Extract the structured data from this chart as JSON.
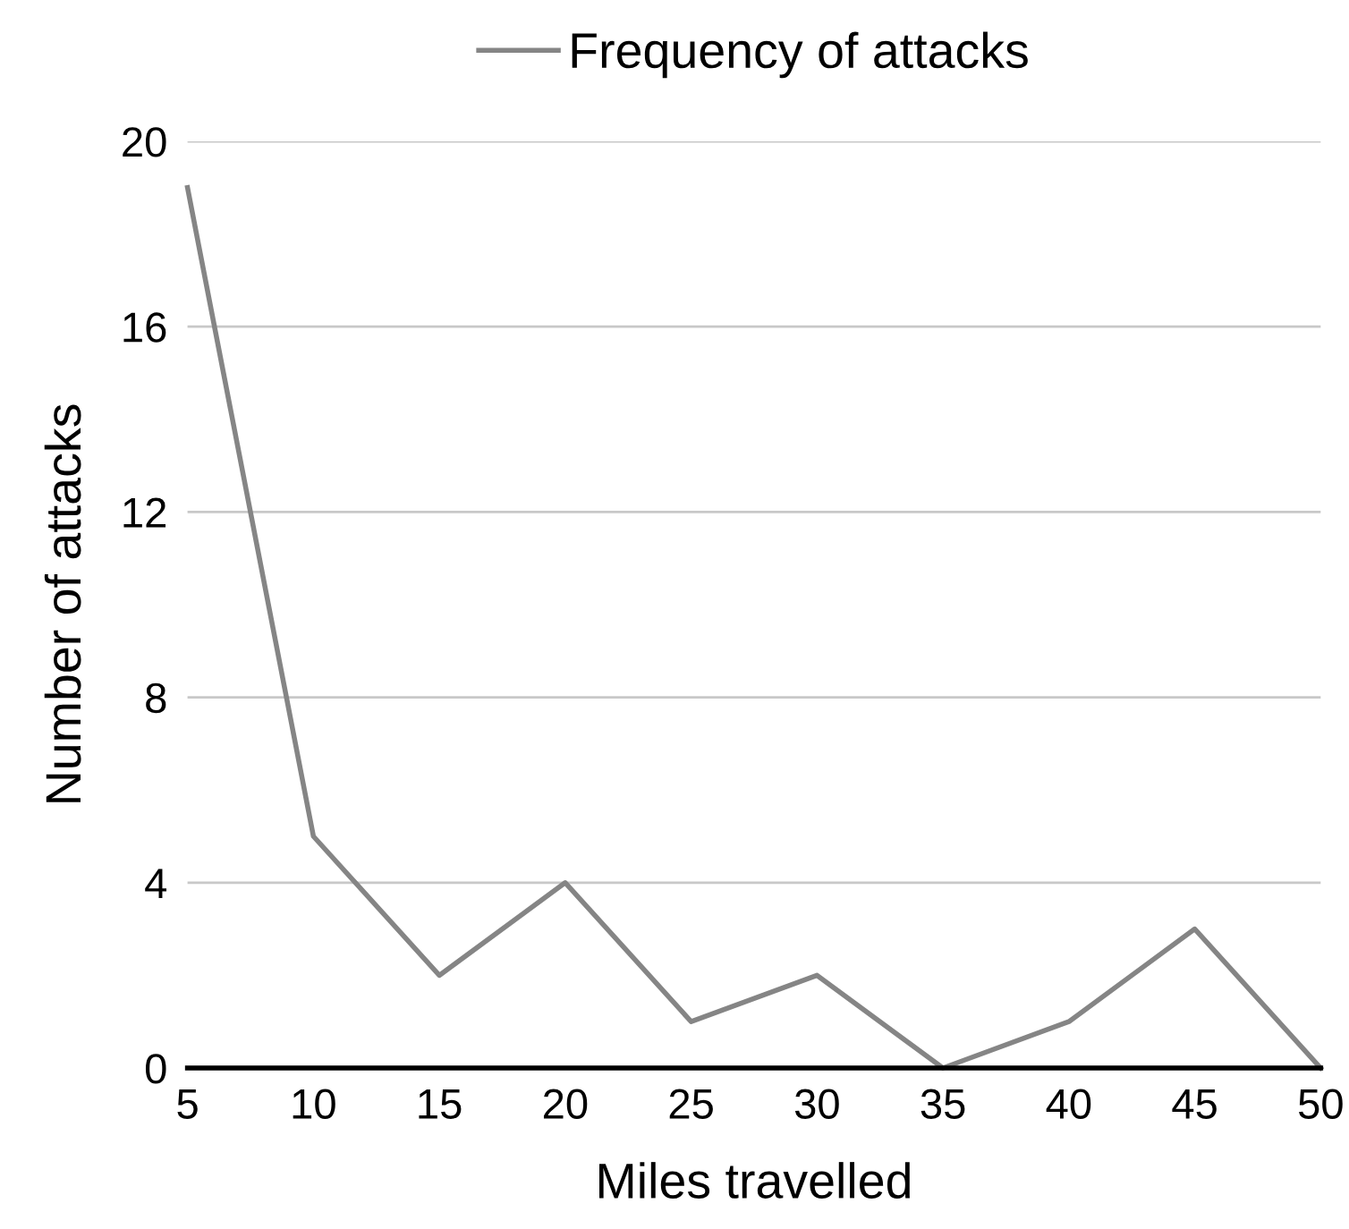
{
  "chart_data": {
    "type": "line",
    "xlabel": "Miles travelled",
    "ylabel": "Number of attacks",
    "x": [
      5,
      10,
      15,
      20,
      25,
      30,
      35,
      40,
      45,
      50
    ],
    "series": [
      {
        "name": "Frequency of attacks",
        "color": "#858585",
        "values": [
          19,
          5,
          2,
          4,
          1,
          2,
          0,
          1,
          3,
          0
        ]
      }
    ],
    "xlim": [
      5,
      50
    ],
    "xticks": [
      5,
      10,
      15,
      20,
      25,
      30,
      35,
      40,
      45,
      50
    ],
    "ylim": [
      0,
      20
    ],
    "yticks": [
      0,
      4,
      8,
      12,
      16,
      20
    ],
    "grid": "y",
    "legend": "top",
    "marker": "none",
    "line_style": "solid"
  }
}
